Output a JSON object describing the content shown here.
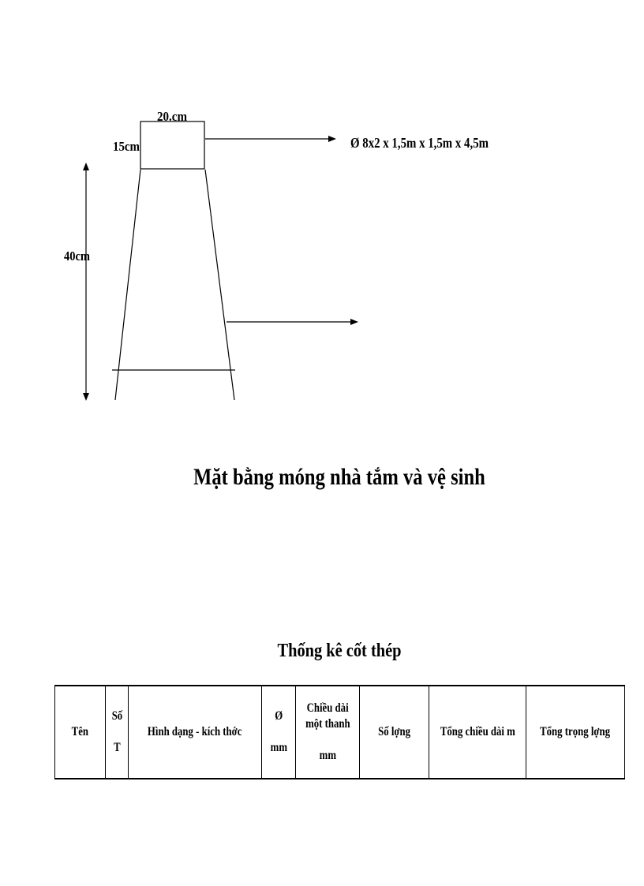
{
  "diagram": {
    "top_width_label": "20.cm",
    "top_height_label": "15cm",
    "height_label": "40cm",
    "rebar_spec": "Ø  8x2 x 1,5m x 1,5m x 4,5m"
  },
  "titles": {
    "main": "Mặt bằng móng nhà tắm và vệ sinh",
    "table_title": "Thống kê cốt thép"
  },
  "table": {
    "headers": [
      {
        "lines": [
          "Tên"
        ]
      },
      {
        "lines": [
          "Số",
          "T"
        ]
      },
      {
        "lines": [
          "Hình dạng - kích thớc"
        ]
      },
      {
        "lines": [
          "Ø",
          "mm"
        ]
      },
      {
        "lines": [
          "Chiều dài",
          "một thanh",
          "mm"
        ]
      },
      {
        "lines": [
          "Số lợng"
        ]
      },
      {
        "lines": [
          "Tổng chiều dài m"
        ]
      },
      {
        "lines": [
          "Tổng trọng lợng"
        ]
      }
    ]
  }
}
